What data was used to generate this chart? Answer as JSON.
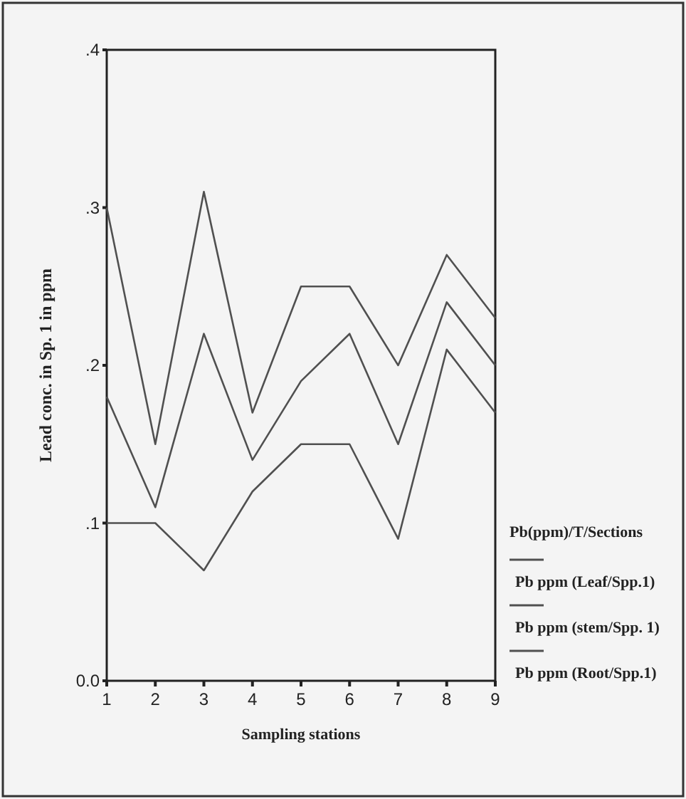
{
  "chart_data": {
    "type": "line",
    "xlabel": "Sampling stations",
    "ylabel": "Lead conc. in Sp. 1 in ppm",
    "legend_title": "Pb(ppm)/T/Sections",
    "x": [
      1,
      2,
      3,
      4,
      5,
      6,
      7,
      8,
      9
    ],
    "series": [
      {
        "name": "Pb ppm (Leaf/Spp.1)",
        "color": "#505050",
        "values": [
          0.3,
          0.15,
          0.31,
          0.17,
          0.25,
          0.25,
          0.2,
          0.27,
          0.23
        ]
      },
      {
        "name": "Pb ppm (stem/Spp. 1)",
        "color": "#505050",
        "values": [
          0.18,
          0.11,
          0.22,
          0.14,
          0.19,
          0.22,
          0.15,
          0.24,
          0.2
        ]
      },
      {
        "name": "Pb ppm (Root/Spp.1)",
        "color": "#505050",
        "values": [
          0.1,
          0.1,
          0.07,
          0.12,
          0.15,
          0.15,
          0.09,
          0.21,
          0.17
        ]
      }
    ],
    "xlim": [
      1,
      9
    ],
    "xticks": [
      1,
      2,
      3,
      4,
      5,
      6,
      7,
      8,
      9
    ],
    "ylim": [
      0,
      0.4
    ],
    "yticks": [
      {
        "value": 0,
        "label": "0.0"
      },
      {
        "value": 0.1,
        "label": ".1"
      },
      {
        "value": 0.2,
        "label": ".2"
      },
      {
        "value": 0.3,
        "label": ".3"
      },
      {
        "value": 0.4,
        "label": ".4"
      }
    ],
    "legend": "right",
    "grid": false,
    "marker": "none",
    "line_style": "solid"
  }
}
